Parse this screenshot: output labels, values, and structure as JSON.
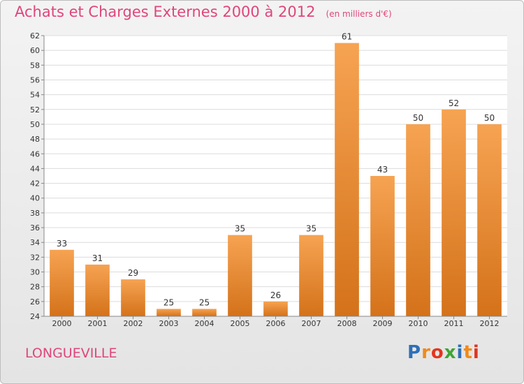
{
  "header": {
    "title": "Achats et Charges Externes 2000 à 2012",
    "unit": "(en milliers d'€)"
  },
  "footer": {
    "commune": "LONGUEVILLE",
    "logo_text": "Proxiti",
    "logo_colors": [
      "#2e6fb7",
      "#f08a1c",
      "#e2351f",
      "#3fa535",
      "#2e6fb7",
      "#f08a1c",
      "#e2351f"
    ]
  },
  "chart_data": {
    "type": "bar",
    "title": "Achats et Charges Externes 2000 à 2012",
    "subtitle": "(en milliers d'€)",
    "categories": [
      "2000",
      "2001",
      "2002",
      "2003",
      "2004",
      "2005",
      "2006",
      "2007",
      "2008",
      "2009",
      "2010",
      "2011",
      "2012"
    ],
    "values": [
      33,
      31,
      29,
      25,
      25,
      35,
      26,
      35,
      61,
      43,
      50,
      52,
      50
    ],
    "ylim": [
      24,
      62
    ],
    "yticks": [
      24,
      26,
      28,
      30,
      32,
      34,
      36,
      38,
      40,
      42,
      44,
      46,
      48,
      50,
      52,
      54,
      56,
      58,
      60,
      62
    ],
    "grid": true,
    "bar_color_top": "#f6a352",
    "bar_color_bottom": "#d4721a",
    "xlabel": "",
    "ylabel": ""
  }
}
